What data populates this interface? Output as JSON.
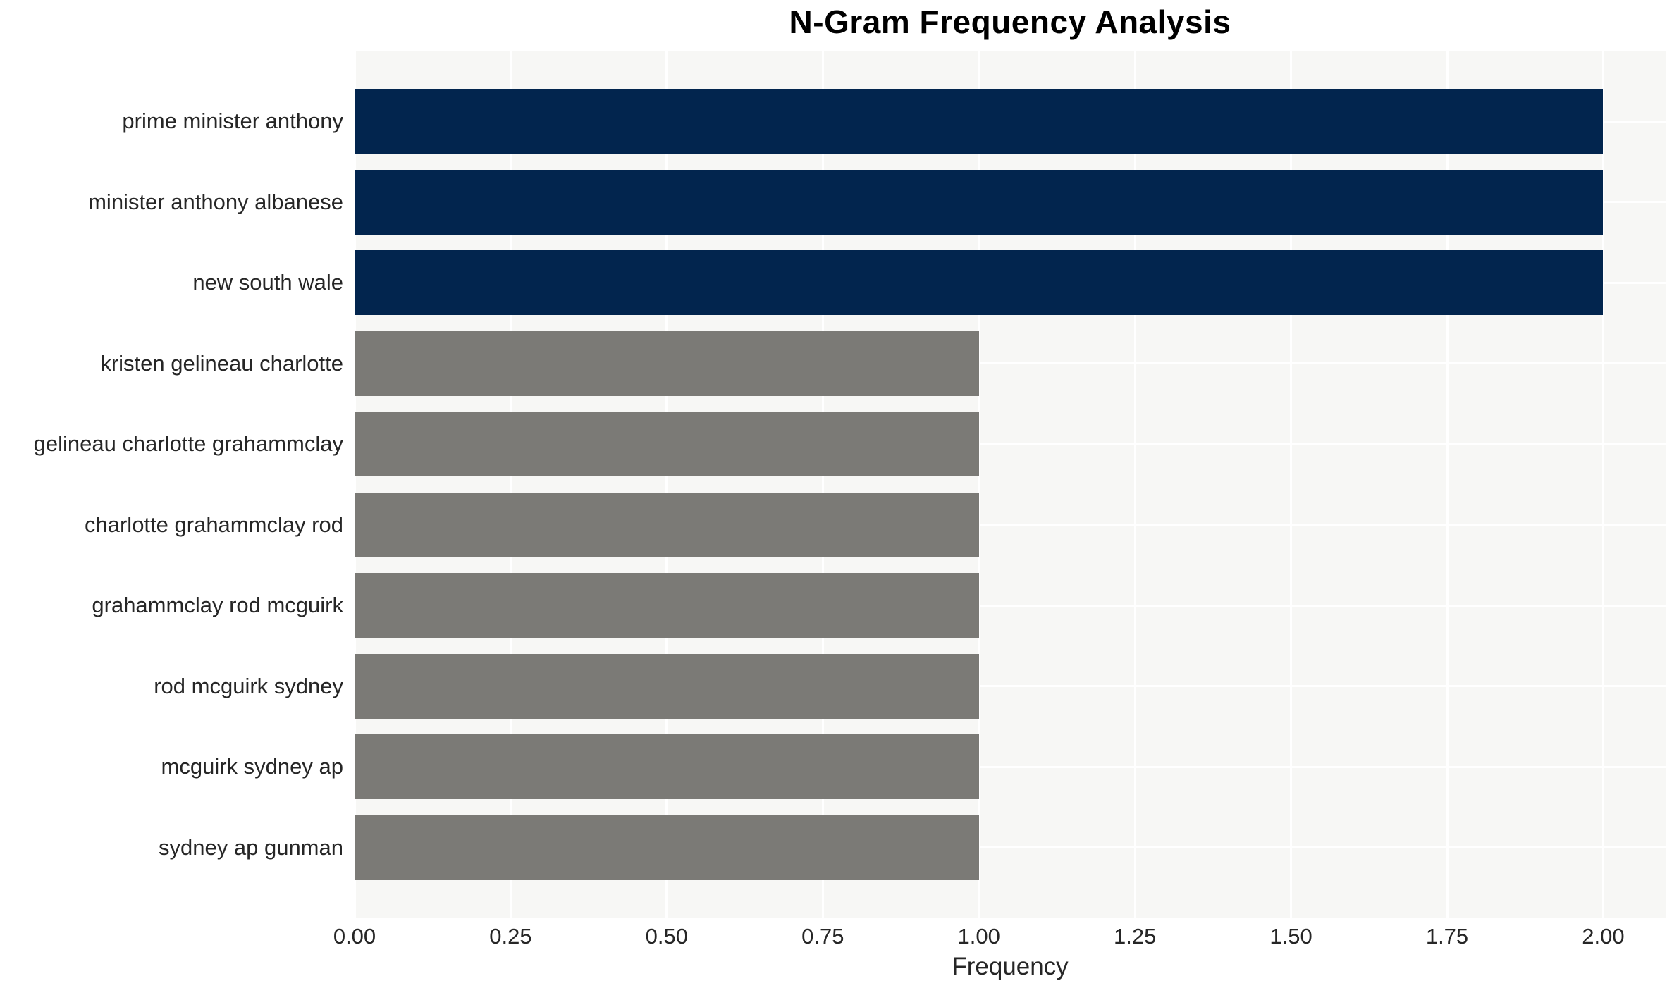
{
  "chart_data": {
    "type": "bar",
    "orientation": "horizontal",
    "title": "N-Gram Frequency Analysis",
    "xlabel": "Frequency",
    "ylabel": "",
    "categories": [
      "prime minister anthony",
      "minister anthony albanese",
      "new south wale",
      "kristen gelineau charlotte",
      "gelineau charlotte grahammclay",
      "charlotte grahammclay rod",
      "grahammclay rod mcguirk",
      "rod mcguirk sydney",
      "mcguirk sydney ap",
      "sydney ap gunman"
    ],
    "values": [
      2,
      2,
      2,
      1,
      1,
      1,
      1,
      1,
      1,
      1
    ],
    "xlim": [
      0,
      2.1
    ],
    "xticks": [
      0.0,
      0.25,
      0.5,
      0.75,
      1.0,
      1.25,
      1.5,
      1.75,
      2.0
    ],
    "xtick_labels": [
      "0.00",
      "0.25",
      "0.50",
      "0.75",
      "1.00",
      "1.25",
      "1.50",
      "1.75",
      "2.00"
    ],
    "grid": "on",
    "legend": "none",
    "colors": {
      "bar_high": "#02254e",
      "bar_low": "#7b7a76",
      "plot_background": "#f7f7f5",
      "gridline": "#ffffff",
      "text": "#262626",
      "title_text": "#000000"
    },
    "color_rule": "bars with value 2 are navy (bar_high), bars with value 1 are gray (bar_low)"
  }
}
